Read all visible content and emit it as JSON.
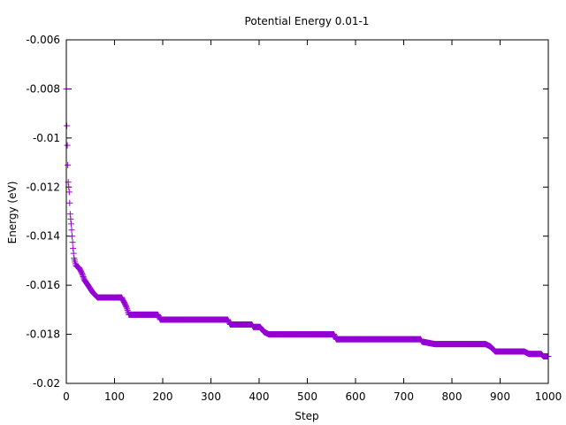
{
  "chart_data": {
    "type": "scatter",
    "title": "Potential Energy 0.01-1",
    "xlabel": "Step",
    "ylabel": "Energy (eV)",
    "xlim": [
      0,
      1000
    ],
    "ylim": [
      -0.02,
      -0.006
    ],
    "xticks": [
      "0",
      "100",
      "200",
      "300",
      "400",
      "500",
      "600",
      "700",
      "800",
      "900",
      "1000"
    ],
    "yticks": [
      "-0.02",
      "-0.018",
      "-0.016",
      "-0.014",
      "-0.012",
      "-0.01",
      "-0.008",
      "-0.006"
    ],
    "grid": false,
    "legend": "none",
    "marker": "plus",
    "series_color": "#9400d3",
    "anchors": [
      [
        0,
        -0.008
      ],
      [
        1,
        -0.0095
      ],
      [
        2,
        -0.0103
      ],
      [
        3,
        -0.0111
      ],
      [
        4,
        -0.0118
      ],
      [
        6,
        -0.0122
      ],
      [
        8,
        -0.0131
      ],
      [
        10,
        -0.0135
      ],
      [
        12,
        -0.014
      ],
      [
        14,
        -0.0145
      ],
      [
        16,
        -0.0149
      ],
      [
        20,
        -0.0152
      ],
      [
        27,
        -0.0153
      ],
      [
        32,
        -0.0155
      ],
      [
        38,
        -0.0158
      ],
      [
        45,
        -0.016
      ],
      [
        55,
        -0.0163
      ],
      [
        65,
        -0.0165
      ],
      [
        115,
        -0.0165
      ],
      [
        120,
        -0.0167
      ],
      [
        125,
        -0.0169
      ],
      [
        130,
        -0.0172
      ],
      [
        190,
        -0.0172
      ],
      [
        195,
        -0.0174
      ],
      [
        335,
        -0.0174
      ],
      [
        340,
        -0.0176
      ],
      [
        385,
        -0.0176
      ],
      [
        388,
        -0.0177
      ],
      [
        402,
        -0.0177
      ],
      [
        410,
        -0.0179
      ],
      [
        420,
        -0.018
      ],
      [
        555,
        -0.018
      ],
      [
        560,
        -0.0182
      ],
      [
        735,
        -0.0182
      ],
      [
        738,
        -0.0183
      ],
      [
        765,
        -0.0184
      ],
      [
        870,
        -0.0184
      ],
      [
        880,
        -0.0185
      ],
      [
        890,
        -0.0187
      ],
      [
        950,
        -0.0187
      ],
      [
        960,
        -0.0188
      ],
      [
        985,
        -0.0188
      ],
      [
        990,
        -0.0189
      ],
      [
        1000,
        -0.0189
      ]
    ]
  }
}
